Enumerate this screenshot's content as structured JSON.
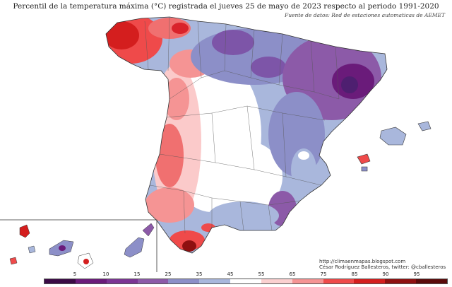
{
  "title": "Percentil de la temperatura máxima (°C) registrada el jueves 25 de mayo de 2023 respecto al periodo 1991-2020",
  "source": "Fuente de datos: Red de estaciones automaticas de AEMET",
  "credits": {
    "url": "http://climaenmapas.blogspot.com",
    "author": "César Rodríguez Ballesteros, twitter: @cballesteros"
  },
  "legend": {
    "ticks": [
      "5",
      "10",
      "15",
      "25",
      "35",
      "45",
      "55",
      "65",
      "75",
      "85",
      "90",
      "95"
    ],
    "colors": [
      "#3b0a45",
      "#6a1b7a",
      "#7b3594",
      "#8c5aa8",
      "#8c8fc8",
      "#a9b7dc",
      "#ffffff",
      "#fbd0d0",
      "#f59494",
      "#ef4a4a",
      "#d41e1e",
      "#8e1010",
      "#5a0a0a"
    ]
  },
  "palette": {
    "red_strong": "#d9222a",
    "red_mid": "#f07070",
    "pink": "#fbcaca",
    "white": "#ffffff",
    "blue_light": "#b3bfe0",
    "blue_mid": "#8f93c8",
    "purple": "#7d55a8",
    "purple_dark": "#4e1f70",
    "land_outline": "#333333",
    "province_line": "#555555"
  }
}
